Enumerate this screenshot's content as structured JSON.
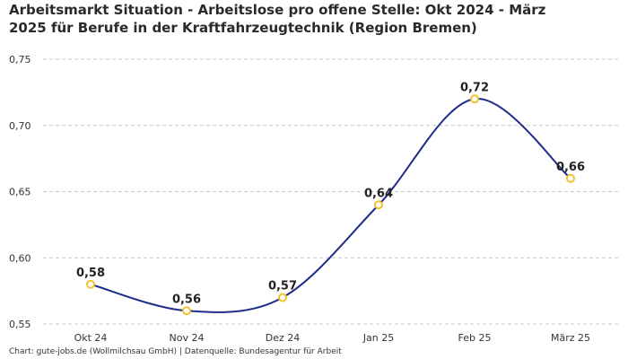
{
  "chart_data": {
    "type": "line",
    "title": "Arbeitsmarkt Situation - Arbeitslose pro offene Stelle: Okt 2024 - März 2025 für Berufe in der Kraftfahrzeugtechnik (Region Bremen)",
    "categories": [
      "Okt 24",
      "Nov 24",
      "Dez 24",
      "Jan 25",
      "Feb 25",
      "März 25"
    ],
    "values": [
      0.58,
      0.56,
      0.57,
      0.64,
      0.72,
      0.66
    ],
    "value_labels": [
      "0,58",
      "0,56",
      "0,57",
      "0,64",
      "0,72",
      "0,66"
    ],
    "y_ticks": [
      0.55,
      0.6,
      0.65,
      0.7,
      0.75
    ],
    "y_tick_labels": [
      "0,55",
      "0,60",
      "0,65",
      "0,70",
      "0,75"
    ],
    "ylim": [
      0.55,
      0.75
    ],
    "xlabel": "",
    "ylabel": "",
    "grid": true,
    "line_color": "#1f2d8a",
    "marker_color": "#f2c12e"
  },
  "footer": "Chart: gute-jobs.de (Wollmilchsau GmbH) | Datenquelle: Bundesagentur für Arbeit"
}
